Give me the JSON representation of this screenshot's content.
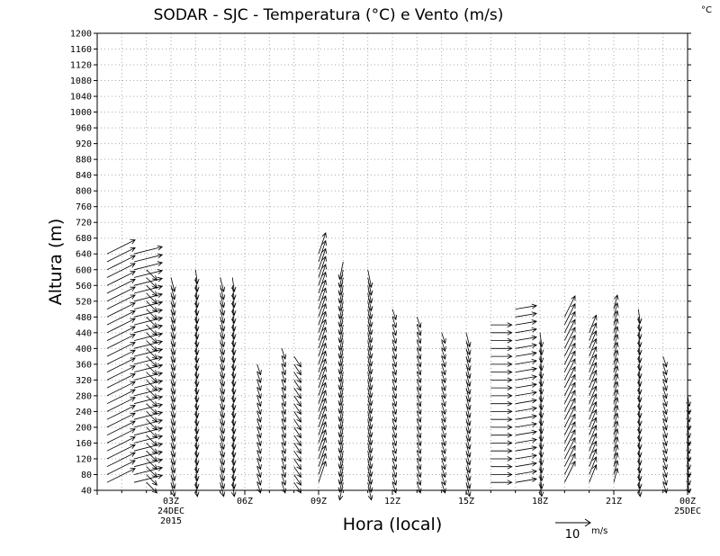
{
  "chart_data": {
    "type": "vector-field",
    "title": "SODAR - SJC - Temperatura (°C) e Vento (m/s)",
    "corner_unit": "°C",
    "xlabel": "Hora (local)",
    "ylabel": "Altura (m)",
    "ylim": [
      40,
      1200
    ],
    "y_ticks": [
      40,
      80,
      120,
      160,
      200,
      240,
      280,
      320,
      360,
      400,
      440,
      480,
      520,
      560,
      600,
      640,
      680,
      720,
      760,
      800,
      840,
      880,
      920,
      960,
      1000,
      1040,
      1080,
      1120,
      1160,
      1200
    ],
    "x_range_hours": [
      0,
      24
    ],
    "x_ticks": [
      {
        "hour": 3,
        "label": "03Z",
        "sub1": "24DEC",
        "sub2": "2015"
      },
      {
        "hour": 6,
        "label": "06Z",
        "sub1": "",
        "sub2": ""
      },
      {
        "hour": 9,
        "label": "09Z",
        "sub1": "",
        "sub2": ""
      },
      {
        "hour": 12,
        "label": "12Z",
        "sub1": "",
        "sub2": ""
      },
      {
        "hour": 15,
        "label": "15Z",
        "sub1": "",
        "sub2": ""
      },
      {
        "hour": 18,
        "label": "18Z",
        "sub1": "",
        "sub2": ""
      },
      {
        "hour": 21,
        "label": "21Z",
        "sub1": "",
        "sub2": ""
      },
      {
        "hour": 24,
        "label": "00Z",
        "sub1": "25DEC",
        "sub2": ""
      }
    ],
    "grid": true,
    "grid_style": "dotted",
    "reference_vector": {
      "speed": 10,
      "label": "10",
      "unit": "m/s"
    },
    "wind_profiles": [
      {
        "hour": 0.0,
        "top": 40,
        "u": 0.5,
        "v": 4
      },
      {
        "hour": 0.4,
        "top": 640,
        "u": 8,
        "v": 4
      },
      {
        "hour": 1.5,
        "top": 640,
        "u": 8,
        "v": 2
      },
      {
        "hour": 2.0,
        "top": 600,
        "u": 3,
        "v": -3
      },
      {
        "hour": 3.0,
        "top": 580,
        "u": 1,
        "v": -4
      },
      {
        "hour": 4.0,
        "top": 600,
        "u": 0.5,
        "v": -4
      },
      {
        "hour": 5.0,
        "top": 580,
        "u": 1,
        "v": -4
      },
      {
        "hour": 5.5,
        "top": 580,
        "u": 0.5,
        "v": -4
      },
      {
        "hour": 6.5,
        "top": 360,
        "u": 1,
        "v": -3
      },
      {
        "hour": 7.5,
        "top": 400,
        "u": 1,
        "v": -3
      },
      {
        "hour": 8.0,
        "top": 380,
        "u": 2,
        "v": -3
      },
      {
        "hour": 9.0,
        "top": 640,
        "u": 2,
        "v": 6
      },
      {
        "hour": 10.0,
        "top": 620,
        "u": -1,
        "v": -5
      },
      {
        "hour": 11.0,
        "top": 600,
        "u": 1,
        "v": -5
      },
      {
        "hour": 12.0,
        "top": 500,
        "u": 1,
        "v": -3
      },
      {
        "hour": 13.0,
        "top": 480,
        "u": 1,
        "v": -3
      },
      {
        "hour": 14.0,
        "top": 440,
        "u": 1,
        "v": -3
      },
      {
        "hour": 15.0,
        "top": 440,
        "u": 1,
        "v": -4
      },
      {
        "hour": 16.0,
        "top": 460,
        "u": 6,
        "v": 0
      },
      {
        "hour": 17.0,
        "top": 500,
        "u": 6,
        "v": 1
      },
      {
        "hour": 18.0,
        "top": 440,
        "u": 0.5,
        "v": -4
      },
      {
        "hour": 19.0,
        "top": 480,
        "u": 3,
        "v": 6
      },
      {
        "hour": 20.0,
        "top": 440,
        "u": 2,
        "v": 5
      },
      {
        "hour": 21.0,
        "top": 500,
        "u": 1,
        "v": 4
      },
      {
        "hour": 22.0,
        "top": 500,
        "u": 0.5,
        "v": -4
      },
      {
        "hour": 23.0,
        "top": 380,
        "u": 1,
        "v": -3
      },
      {
        "hour": 24.0,
        "top": 280,
        "u": 0.5,
        "v": -3
      }
    ]
  }
}
